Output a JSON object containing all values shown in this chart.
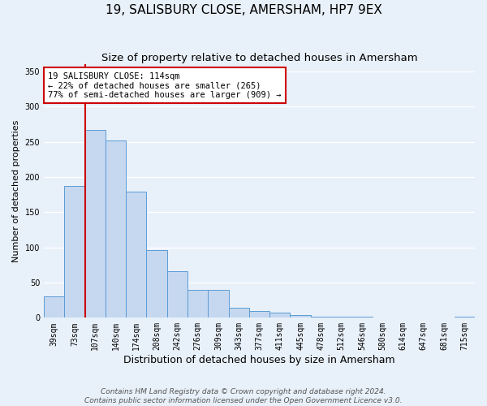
{
  "title": "19, SALISBURY CLOSE, AMERSHAM, HP7 9EX",
  "subtitle": "Size of property relative to detached houses in Amersham",
  "xlabel": "Distribution of detached houses by size in Amersham",
  "ylabel": "Number of detached properties",
  "bar_labels": [
    "39sqm",
    "73sqm",
    "107sqm",
    "140sqm",
    "174sqm",
    "208sqm",
    "242sqm",
    "276sqm",
    "309sqm",
    "343sqm",
    "377sqm",
    "411sqm",
    "445sqm",
    "478sqm",
    "512sqm",
    "546sqm",
    "580sqm",
    "614sqm",
    "647sqm",
    "681sqm",
    "715sqm"
  ],
  "bar_values": [
    30,
    187,
    267,
    252,
    179,
    96,
    66,
    40,
    40,
    14,
    10,
    7,
    4,
    2,
    2,
    1,
    0,
    0,
    0,
    0,
    1
  ],
  "bar_color": "#c5d8f0",
  "bar_edge_color": "#5b9bd5",
  "ylim": [
    0,
    360
  ],
  "yticks": [
    0,
    50,
    100,
    150,
    200,
    250,
    300,
    350
  ],
  "vline_x_index": 2,
  "vline_color": "#cc0000",
  "annotation_title": "19 SALISBURY CLOSE: 114sqm",
  "annotation_line1": "← 22% of detached houses are smaller (265)",
  "annotation_line2": "77% of semi-detached houses are larger (909) →",
  "annotation_box_color": "#ffffff",
  "annotation_box_edge": "#cc0000",
  "footer_line1": "Contains HM Land Registry data © Crown copyright and database right 2024.",
  "footer_line2": "Contains public sector information licensed under the Open Government Licence v3.0.",
  "background_color": "#e8f0f9",
  "plot_bg_color": "#e8f0f9",
  "grid_color": "#ffffff",
  "title_fontsize": 11,
  "subtitle_fontsize": 9.5,
  "xlabel_fontsize": 9,
  "ylabel_fontsize": 8,
  "tick_fontsize": 7,
  "annotation_fontsize": 7.5,
  "footer_fontsize": 6.5
}
